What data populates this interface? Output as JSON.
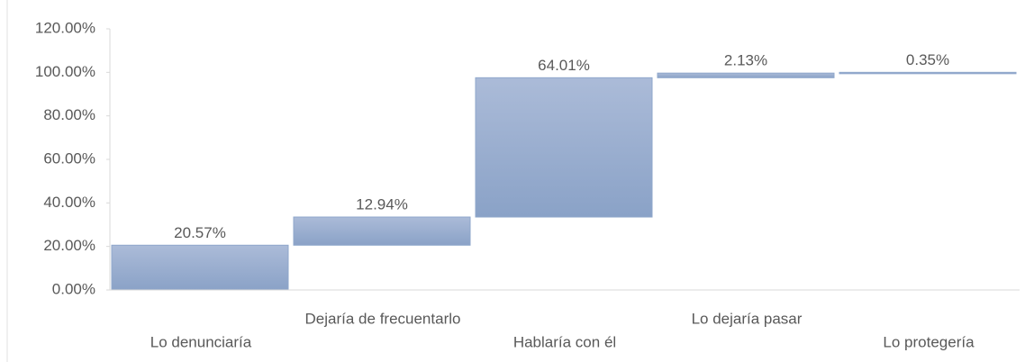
{
  "chart_data": {
    "type": "waterfall",
    "categories": [
      "Lo denunciaría",
      "Dejaría de frecuentarlo",
      "Hablaría con él",
      "Lo dejaría pasar",
      "Lo protegería"
    ],
    "values": [
      20.57,
      12.94,
      64.01,
      2.13,
      0.35
    ],
    "value_labels": [
      "20.57%",
      "12.94%",
      "64.01%",
      "2.13%",
      "0.35%"
    ],
    "color": "#8fa7cb",
    "ylim": [
      0,
      120
    ],
    "yticks": [
      {
        "value": 0,
        "label": "0.00%"
      },
      {
        "value": 20,
        "label": "20.00%"
      },
      {
        "value": 40,
        "label": "40.00%"
      },
      {
        "value": 60,
        "label": "60.00%"
      },
      {
        "value": 80,
        "label": "80.00%"
      },
      {
        "value": 100,
        "label": "100.00%"
      },
      {
        "value": 120,
        "label": "120.00%"
      }
    ]
  }
}
